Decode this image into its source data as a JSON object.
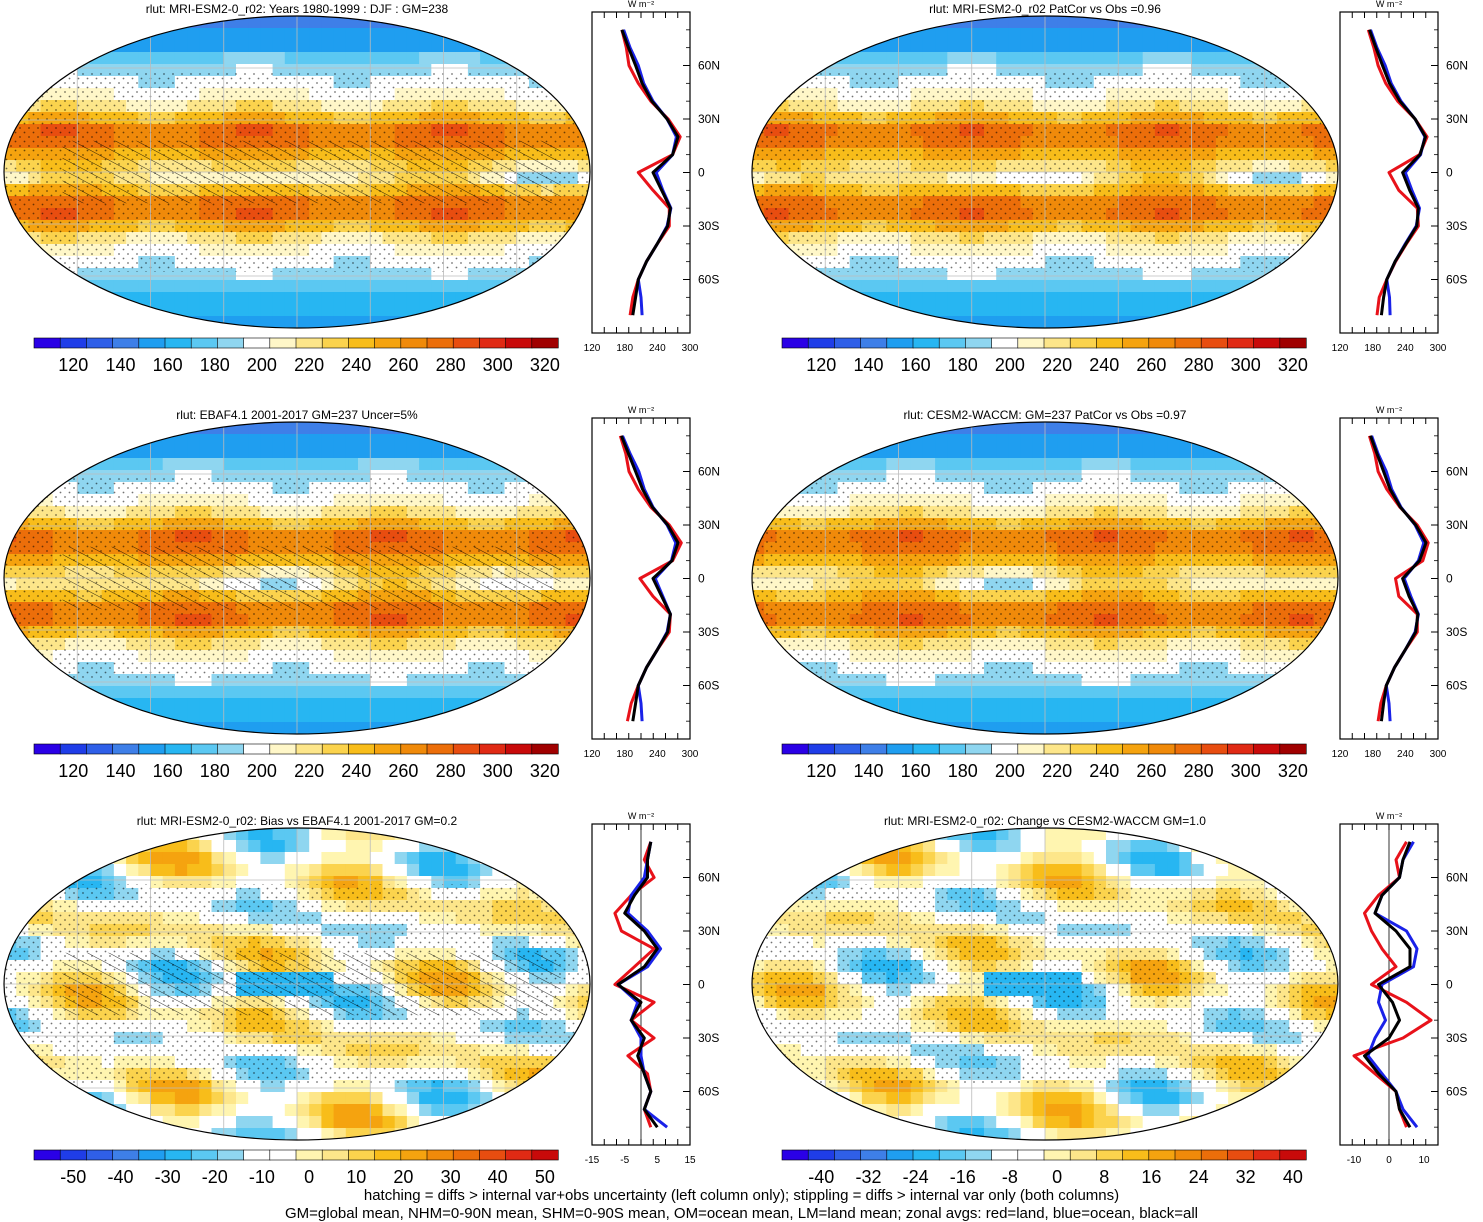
{
  "footer": {
    "line1": "hatching = diffs > internal var+obs uncertainty (left column only); stippling = diffs > internal var only (both columns)",
    "line2": "GM=global mean, NHM=0-90N mean, SHM=0-90S mean, OM=ocean mean, LM=land mean; zonal avgs: red=land, blue=ocean, black=all"
  },
  "colors": {
    "land": "#e8121a",
    "ocean": "#1a22e8",
    "all": "#000000"
  },
  "lat_ticks": [
    "60N",
    "30N",
    "0",
    "30S",
    "60S"
  ],
  "unit_label": "W m⁻²",
  "chart_data": [
    {
      "type": "heatmap",
      "title": "rlut: MRI-ESM2-0_r02: Years 1980-1999 : DJF : GM=238",
      "colorbar_labels": [
        "120",
        "140",
        "160",
        "180",
        "200",
        "220",
        "240",
        "260",
        "280",
        "300",
        "320"
      ],
      "value_range": [
        110,
        330
      ],
      "palette": "absolute",
      "zonal_profile": {
        "xlim": [
          120,
          300
        ],
        "xtick_labels": [
          "120",
          "180",
          "240",
          "300"
        ],
        "lat": [
          80,
          70,
          60,
          50,
          40,
          30,
          20,
          10,
          0,
          -10,
          -20,
          -30,
          -40,
          -50,
          -60,
          -70,
          -80
        ],
        "series": [
          {
            "key": "land",
            "values": [
              175,
              183,
              188,
              205,
              228,
              260,
              282,
              268,
              205,
              232,
              262,
              262,
              240,
              220,
              205,
              195,
              190
            ]
          },
          {
            "key": "ocean",
            "values": [
              178,
              190,
              205,
              215,
              232,
              258,
              275,
              268,
              238,
              250,
              265,
              258,
              240,
              220,
              205,
              210,
              212
            ]
          },
          {
            "key": "all",
            "values": [
              175,
              187,
              200,
              212,
              230,
              258,
              278,
              268,
              232,
              248,
              264,
              259,
              240,
              220,
              205,
              200,
              195
            ]
          }
        ]
      }
    },
    {
      "type": "heatmap",
      "title": "rlut: MRI-ESM2-0_r02 PatCor vs Obs =0.96",
      "colorbar_labels": [
        "120",
        "140",
        "160",
        "180",
        "200",
        "220",
        "240",
        "260",
        "280",
        "300",
        "320"
      ],
      "value_range": [
        110,
        330
      ],
      "palette": "absolute",
      "zonal_profile": {
        "xlim": [
          120,
          300
        ],
        "xtick_labels": [
          "120",
          "180",
          "240",
          "300"
        ],
        "lat": [
          80,
          70,
          60,
          50,
          40,
          30,
          20,
          10,
          0,
          -10,
          -20,
          -30,
          -40,
          -50,
          -60,
          -70,
          -80
        ],
        "series": [
          {
            "key": "land",
            "values": [
              172,
              182,
              190,
              204,
              226,
              258,
              280,
              266,
              210,
              228,
              262,
              264,
              242,
              222,
              206,
              192,
              188
            ]
          },
          {
            "key": "ocean",
            "values": [
              176,
              188,
              203,
              214,
              232,
              258,
              276,
              268,
              240,
              252,
              266,
              260,
              240,
              221,
              206,
              211,
              212
            ]
          },
          {
            "key": "all",
            "values": [
              174,
              186,
              198,
              211,
              230,
              258,
              277,
              267,
              235,
              248,
              264,
              261,
              241,
              221,
              206,
              200,
              196
            ]
          }
        ]
      }
    },
    {
      "type": "heatmap",
      "title": "rlut: EBAF4.1 2001-2017 GM=237 Uncer=5%",
      "colorbar_labels": [
        "120",
        "140",
        "160",
        "180",
        "200",
        "220",
        "240",
        "260",
        "280",
        "300",
        "320"
      ],
      "value_range": [
        110,
        330
      ],
      "palette": "absolute",
      "zonal_profile": {
        "xlim": [
          120,
          300
        ],
        "xtick_labels": [
          "120",
          "180",
          "240",
          "300"
        ],
        "lat": [
          80,
          70,
          60,
          50,
          40,
          30,
          20,
          10,
          0,
          -10,
          -20,
          -30,
          -40,
          -50,
          -60,
          -70,
          -80
        ],
        "series": [
          {
            "key": "land",
            "values": [
              172,
              182,
              188,
              205,
              228,
              262,
              284,
              268,
              208,
              232,
              264,
              262,
              240,
              220,
              205,
              192,
              185
            ]
          },
          {
            "key": "ocean",
            "values": [
              176,
              190,
              206,
              216,
              232,
              258,
              274,
              266,
              236,
              250,
              264,
              258,
              240,
              220,
              205,
              210,
              212
            ]
          },
          {
            "key": "all",
            "values": [
              174,
              187,
              200,
              213,
              231,
              259,
              278,
              267,
              232,
              248,
              264,
              259,
              240,
              220,
              205,
              200,
              195
            ]
          }
        ]
      }
    },
    {
      "type": "heatmap",
      "title": "rlut: CESM2-WACCM: GM=237 PatCor vs Obs =0.97",
      "colorbar_labels": [
        "120",
        "140",
        "160",
        "180",
        "200",
        "220",
        "240",
        "260",
        "280",
        "300",
        "320"
      ],
      "value_range": [
        110,
        330
      ],
      "palette": "absolute",
      "zonal_profile": {
        "xlim": [
          120,
          300
        ],
        "xtick_labels": [
          "120",
          "180",
          "240",
          "300"
        ],
        "lat": [
          80,
          70,
          60,
          50,
          40,
          30,
          20,
          10,
          0,
          -10,
          -20,
          -30,
          -40,
          -50,
          -60,
          -70,
          -80
        ],
        "series": [
          {
            "key": "land",
            "values": [
              174,
              184,
              190,
              206,
              230,
              262,
              282,
              272,
              222,
              228,
              262,
              262,
              240,
              220,
              205,
              195,
              190
            ]
          },
          {
            "key": "ocean",
            "values": [
              178,
              190,
              205,
              215,
              232,
              258,
              274,
              264,
              238,
              250,
              264,
              258,
              240,
              220,
              205,
              210,
              212
            ]
          },
          {
            "key": "all",
            "values": [
              176,
              188,
              200,
              212,
              231,
              259,
              278,
              266,
              235,
              247,
              263,
              259,
              240,
              220,
              205,
              200,
              196
            ]
          }
        ]
      }
    },
    {
      "type": "heatmap",
      "title": "rlut: MRI-ESM2-0_r02: Bias vs EBAF4.1 2001-2017 GM=0.2",
      "colorbar_labels": [
        "-50",
        "-40",
        "-30",
        "-20",
        "-10",
        "0",
        "10",
        "20",
        "30",
        "40",
        "50"
      ],
      "value_range": [
        -55,
        55
      ],
      "palette": "diverging",
      "zonal_profile": {
        "xlim": [
          -15,
          15
        ],
        "xtick_labels": [
          "-15",
          "-5",
          "5",
          "15"
        ],
        "lat": [
          80,
          70,
          60,
          50,
          40,
          30,
          20,
          10,
          0,
          -10,
          -20,
          -30,
          -40,
          -50,
          -60,
          -70,
          -80
        ],
        "series": [
          {
            "key": "land",
            "values": [
              3,
              1,
              4,
              -3,
              -8,
              -6,
              4,
              -2,
              -8,
              4,
              -3,
              4,
              -4,
              2,
              3,
              1,
              3
            ]
          },
          {
            "key": "ocean",
            "values": [
              3,
              2,
              1,
              -3,
              -4,
              2,
              6,
              2,
              -7,
              -1,
              -3,
              0,
              0,
              1,
              3,
              1,
              8
            ]
          },
          {
            "key": "all",
            "values": [
              3,
              2,
              2,
              -2,
              -5,
              1,
              5,
              1,
              -7,
              0,
              -3,
              1,
              -1,
              1,
              3,
              1,
              5
            ]
          }
        ]
      }
    },
    {
      "type": "heatmap",
      "title": "rlut: MRI-ESM2-0_r02: Change vs CESM2-WACCM GM=1.0",
      "colorbar_labels": [
        "-40",
        "-32",
        "-24",
        "-16",
        "-8",
        "0",
        "8",
        "16",
        "24",
        "32",
        "40"
      ],
      "value_range": [
        -44,
        44
      ],
      "palette": "diverging",
      "zonal_profile": {
        "xlim": [
          -14,
          14
        ],
        "xtick_labels": [
          "-10",
          "0",
          "10"
        ],
        "lat": [
          80,
          70,
          60,
          50,
          40,
          30,
          20,
          10,
          0,
          -10,
          -20,
          -30,
          -40,
          -50,
          -60,
          -70,
          -80
        ],
        "series": [
          {
            "key": "land",
            "values": [
              5,
              2,
              3,
              -3,
              -7,
              -5,
              -2,
              2,
              -5,
              5,
              12,
              4,
              -10,
              -4,
              2,
              3,
              5
            ]
          },
          {
            "key": "ocean",
            "values": [
              7,
              4,
              3,
              -2,
              -4,
              5,
              8,
              7,
              -2,
              -3,
              -1,
              -4,
              -6,
              -2,
              2,
              4,
              8
            ]
          },
          {
            "key": "all",
            "values": [
              6,
              4,
              3,
              -2,
              -4,
              2,
              6,
              6,
              -3,
              1,
              3,
              0,
              -7,
              -3,
              2,
              3,
              6
            ]
          }
        ]
      }
    }
  ]
}
